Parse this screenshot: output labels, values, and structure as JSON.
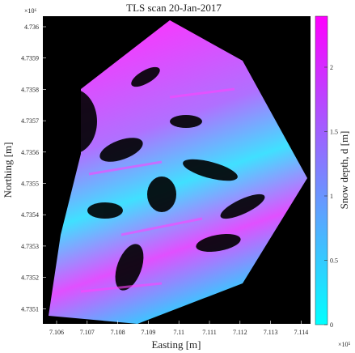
{
  "title": "TLS scan 20-Jan-2017",
  "x_axis": {
    "label": "Easting [m]",
    "multiplier": "×10⁵",
    "ticks": [
      "7.106",
      "7.107",
      "7.108",
      "7.109",
      "7.11",
      "7.111",
      "7.112",
      "7.113",
      "7.114"
    ]
  },
  "y_axis": {
    "label": "Northing [m]",
    "multiplier": "×10⁶",
    "ticks": [
      "4.736",
      "4.7359",
      "4.7358",
      "4.7357",
      "4.7356",
      "4.7355",
      "4.7354",
      "4.7353",
      "4.7352",
      "4.7351"
    ]
  },
  "colorbar": {
    "label": "Snow depth, d [m]",
    "ticks": [
      "0",
      "0.5",
      "1",
      "1.5",
      "2"
    ]
  }
}
